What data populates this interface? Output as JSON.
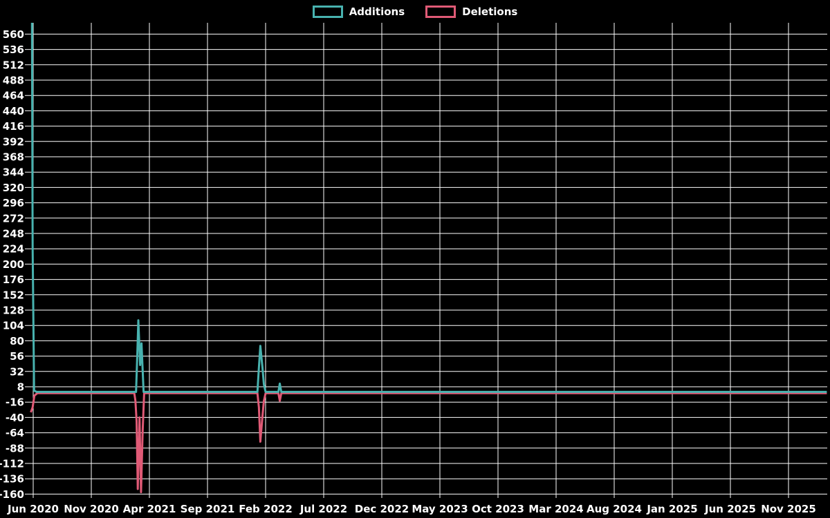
{
  "legend": {
    "position": "top-center"
  },
  "chart_data": {
    "type": "line",
    "title": "",
    "xlabel": "",
    "ylabel": "",
    "grid": true,
    "background_color": "#000000",
    "gridline_color": "#ffffff",
    "text_color": "#ffffff",
    "legend_position": "top-center",
    "y_axis": {
      "min": -160,
      "max": 560,
      "step": 24,
      "tick_values": [
        560,
        536,
        512,
        488,
        464,
        440,
        416,
        392,
        368,
        344,
        320,
        296,
        272,
        248,
        224,
        200,
        176,
        152,
        128,
        104,
        80,
        56,
        32,
        8,
        -16,
        -40,
        -64,
        -88,
        -112,
        -136,
        -160
      ]
    },
    "x_axis": {
      "tick_labels": [
        "Jun 2020",
        "Nov 2020",
        "Apr 2021",
        "Sep 2021",
        "Feb 2022",
        "Jul 2022",
        "Dec 2022",
        "May 2023",
        "Oct 2023",
        "Mar 2024",
        "Aug 2024",
        "Jan 2025",
        "Jun 2025",
        "Nov 2025"
      ],
      "tick_months": [
        0,
        5,
        10,
        15,
        20,
        25,
        30,
        35,
        40,
        45,
        50,
        55,
        60,
        65
      ]
    },
    "series": [
      {
        "name": "Additions",
        "color": "#48b2af",
        "points": [
          [
            -0.16,
            940
          ],
          [
            -0.05,
            224
          ],
          [
            0.08,
            2
          ],
          [
            0.3,
            0
          ],
          [
            8.85,
            0
          ],
          [
            8.95,
            55
          ],
          [
            9.05,
            112
          ],
          [
            9.2,
            42
          ],
          [
            9.32,
            76
          ],
          [
            9.5,
            0
          ],
          [
            19.3,
            0
          ],
          [
            19.42,
            38
          ],
          [
            19.55,
            72
          ],
          [
            19.72,
            40
          ],
          [
            19.85,
            12
          ],
          [
            20.0,
            0
          ],
          [
            21.1,
            0
          ],
          [
            21.22,
            13
          ],
          [
            21.35,
            0
          ],
          [
            68.3,
            0
          ]
        ]
      },
      {
        "name": "Deletions",
        "color": "#e05a76",
        "points": [
          [
            -0.2,
            -32
          ],
          [
            -0.05,
            -24
          ],
          [
            0.1,
            -6
          ],
          [
            0.35,
            -2
          ],
          [
            8.7,
            -2
          ],
          [
            8.8,
            -14
          ],
          [
            8.9,
            -46
          ],
          [
            9.0,
            -152
          ],
          [
            9.15,
            -40
          ],
          [
            9.28,
            -157
          ],
          [
            9.42,
            -60
          ],
          [
            9.55,
            -2
          ],
          [
            19.3,
            -2
          ],
          [
            19.42,
            -24
          ],
          [
            19.55,
            -78
          ],
          [
            19.72,
            -40
          ],
          [
            19.85,
            -14
          ],
          [
            20.0,
            -2
          ],
          [
            21.1,
            -2
          ],
          [
            21.22,
            -14
          ],
          [
            21.35,
            -2
          ],
          [
            68.3,
            -2
          ]
        ]
      }
    ]
  }
}
